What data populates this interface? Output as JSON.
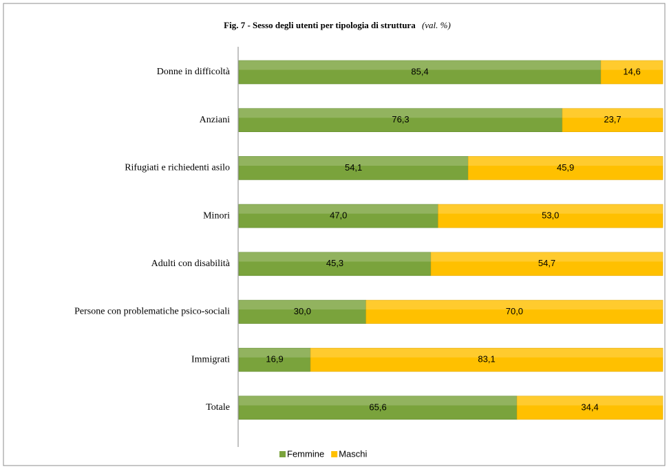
{
  "chart_data": {
    "type": "stacked_bar_horizontal",
    "title": "Fig. 7 - Sesso degli utenti per tipologia di struttura",
    "subtitle": "(val. %)",
    "categories": [
      "Donne in difficoltà",
      "Anziani",
      "Rifugiati e richiedenti asilo",
      "Minori",
      "Adulti con disabilità",
      "Persone con problematiche psico-sociali",
      "Immigrati",
      "Totale"
    ],
    "series": [
      {
        "name": "Femmine",
        "color": "#7aa33c",
        "values": [
          85.4,
          76.3,
          54.1,
          47.0,
          45.3,
          30.0,
          16.9,
          65.6
        ],
        "value_labels": [
          "85,4",
          "76,3",
          "54,1",
          "47,0",
          "45,3",
          "30,0",
          "16,9",
          "65,6"
        ]
      },
      {
        "name": "Maschi",
        "color": "#ffc000",
        "values": [
          14.6,
          23.7,
          45.9,
          53.0,
          54.7,
          70.0,
          83.1,
          34.4
        ],
        "value_labels": [
          "14,6",
          "23,7",
          "45,9",
          "53,0",
          "54,7",
          "70,0",
          "83,1",
          "34,4"
        ]
      }
    ],
    "xlim": [
      0,
      100
    ],
    "legend": "bottom"
  }
}
